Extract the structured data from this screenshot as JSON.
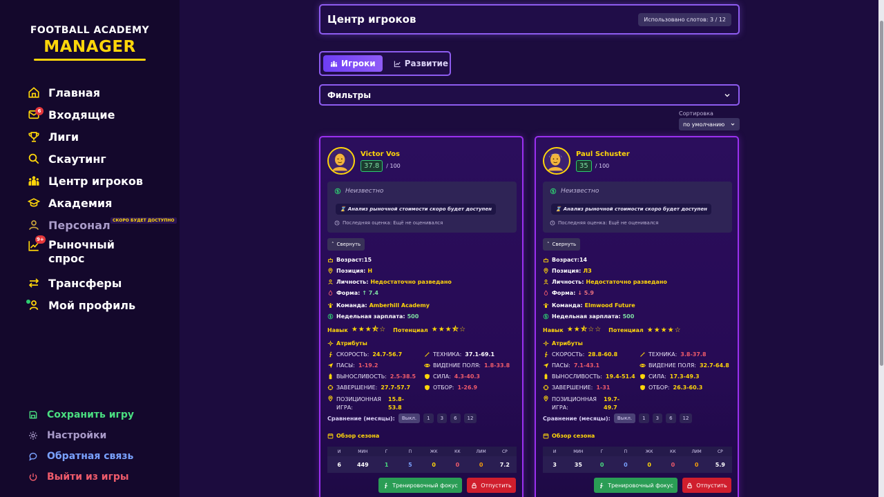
{
  "logo": {
    "line1": "FOOTBALL ACADEMY",
    "line2": "MANAGER"
  },
  "nav": [
    {
      "label": "Главная",
      "icon": "home-icon"
    },
    {
      "label": "Входящие",
      "icon": "mail-icon",
      "badge": "6"
    },
    {
      "label": "Лиги",
      "icon": "trophy-icon"
    },
    {
      "label": "Скаутинг",
      "icon": "search-icon"
    },
    {
      "label": "Центр игроков",
      "icon": "users-icon"
    },
    {
      "label": "Академия",
      "icon": "graduation-cap-icon"
    },
    {
      "label": "Персонал",
      "icon": "staff-icon",
      "soon": "СКОРО БУДЕТ ДОСТУПНО"
    },
    {
      "label": "Рыночный спрос",
      "icon": "chart-icon",
      "badge": "9+"
    },
    {
      "label": "Трансферы",
      "icon": "transfer-icon"
    },
    {
      "label": "Мой профиль",
      "icon": "user-icon"
    }
  ],
  "bottom_nav": [
    {
      "label": "Сохранить игру",
      "color": "#4ade80"
    },
    {
      "label": "Настройки",
      "color": "#a99bc9"
    },
    {
      "label": "Обратная связь",
      "color": "#7aa2ff"
    },
    {
      "label": "Выйти из игры",
      "color": "#ef5b6b"
    }
  ],
  "header": {
    "title": "Центр игроков",
    "slots": "Использовано слотов: 3 / 12"
  },
  "tabs": {
    "players": "Игроки",
    "development": "Развитие"
  },
  "filters": {
    "label": "Фильтры"
  },
  "sort": {
    "label": "Сортировка",
    "value": "по умолчанию"
  },
  "cards": [
    {
      "name": "Victor Vos",
      "rating": "37.8",
      "rating_max": "/ 100",
      "market_status": "Неизвестно",
      "market_note": "Анализ рыночной стоимости скоро будет доступен",
      "last_eval": "Последняя оценка: Ещё не оценивался",
      "collapse": "Свернуть",
      "age_label": "Возраст:",
      "age": "15",
      "pos_label": "Позиция:",
      "pos": "Н",
      "pers_label": "Личность:",
      "pers": "Недостаточно разведано",
      "form_label": "Форма:",
      "form": "↑ 7.4",
      "team_label": "Команда:",
      "team": "Amberhill Academy",
      "wage_label": "Недельная зарплата:",
      "wage": "500",
      "skill_label": "Навык",
      "skill_stars": 3.5,
      "potential_label": "Потенциал",
      "potential_stars": 3.5,
      "attr_title": "Атрибуты",
      "attrs": {
        "speed": {
          "name": "СКОРОСТЬ:",
          "value": "24.7-56.7"
        },
        "technique": {
          "name": "ТЕХНИКА:",
          "value": "37.1-69.1"
        },
        "passing": {
          "name": "ПАСЫ:",
          "value": "1-19.2"
        },
        "vision": {
          "name": "ВИДЕНИЕ ПОЛЯ:",
          "value": "1.8-33.8"
        },
        "stamina": {
          "name": "ВЫНОСЛИВОСТЬ:",
          "value": "2.5-38.5"
        },
        "strength": {
          "name": "СИЛА:",
          "value": "4.3-40.3"
        },
        "finishing": {
          "name": "ЗАВЕРШЕНИЕ:",
          "value": "27.7-57.7"
        },
        "tackling": {
          "name": "ОТБОР:",
          "value": "1-26.9"
        },
        "positioning": {
          "name": "ПОЗИЦИОННАЯ ИГРА:",
          "value": "15.8-53.8"
        }
      },
      "compare_label": "Сравнение (месяцы):",
      "compare_opts": [
        "Выкл.",
        "1",
        "3",
        "6",
        "12"
      ],
      "season_title": "Обзор сезона",
      "stat_headers": [
        "И",
        "МИН",
        "Г",
        "П",
        "ЖК",
        "КК",
        "ЛИМ",
        "СР"
      ],
      "stat_values": [
        "6",
        "449",
        "1",
        "5",
        "0",
        "0",
        "0",
        "7.2"
      ],
      "train": "Тренировочный фокус",
      "release": "Отпустить"
    },
    {
      "name": "Paul Schuster",
      "rating": "35",
      "rating_max": "/ 100",
      "market_status": "Неизвестно",
      "market_note": "Анализ рыночной стоимости скоро будет доступен",
      "last_eval": "Последняя оценка: Ещё не оценивался",
      "collapse": "Свернуть",
      "age_label": "Возраст:",
      "age": "14",
      "pos_label": "Позиция:",
      "pos": "ЛЗ",
      "pers_label": "Личность:",
      "pers": "Недостаточно разведано",
      "form_label": "Форма:",
      "form": "↓ 5.9",
      "team_label": "Команда:",
      "team": "Elmwood Future",
      "wage_label": "Недельная зарплата:",
      "wage": "500",
      "skill_label": "Навык",
      "skill_stars": 2.5,
      "potential_label": "Потенциал",
      "potential_stars": 4,
      "attr_title": "Атрибуты",
      "attrs": {
        "speed": {
          "name": "СКОРОСТЬ:",
          "value": "28.8-60.8"
        },
        "technique": {
          "name": "ТЕХНИКА:",
          "value": "3.8-37.8"
        },
        "passing": {
          "name": "ПАСЫ:",
          "value": "7.1-43.1"
        },
        "vision": {
          "name": "ВИДЕНИЕ ПОЛЯ:",
          "value": "32.7-64.8"
        },
        "stamina": {
          "name": "ВЫНОСЛИВОСТЬ:",
          "value": "19.4-51.4"
        },
        "strength": {
          "name": "СИЛА:",
          "value": "17.3-49.3"
        },
        "finishing": {
          "name": "ЗАВЕРШЕНИЕ:",
          "value": "1-31"
        },
        "tackling": {
          "name": "ОТБОР:",
          "value": "26.3-60.3"
        },
        "positioning": {
          "name": "ПОЗИЦИОННАЯ ИГРА:",
          "value": "19.7-49.7"
        }
      },
      "compare_label": "Сравнение (месяцы):",
      "compare_opts": [
        "Выкл.",
        "1",
        "3",
        "6",
        "12"
      ],
      "season_title": "Обзор сезона",
      "stat_headers": [
        "И",
        "МИН",
        "Г",
        "П",
        "ЖК",
        "КК",
        "ЛИМ",
        "СР"
      ],
      "stat_values": [
        "3",
        "35",
        "0",
        "0",
        "0",
        "0",
        "0",
        "5.9"
      ],
      "train": "Тренировочный фокус",
      "release": "Отпустить"
    }
  ]
}
